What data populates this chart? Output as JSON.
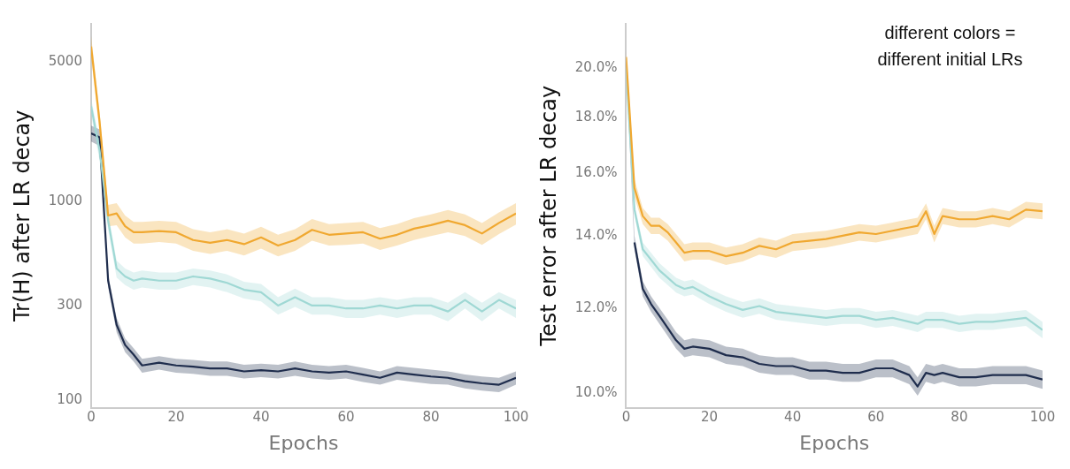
{
  "chart_data": [
    {
      "type": "line",
      "ylabel": "Tr(H) after LR decay",
      "xlabel": "Epochs",
      "log": "y",
      "grid": false,
      "legend": false,
      "marker": "none",
      "line_style": "solid",
      "xlim": [
        0,
        100
      ],
      "xticks": [
        0,
        20,
        40,
        60,
        80,
        100
      ],
      "ylim": [
        92,
        7800
      ],
      "yticks": [
        100,
        300,
        1000,
        5000
      ],
      "x": [
        0,
        2,
        4,
        6,
        8,
        10,
        12,
        16,
        20,
        24,
        28,
        32,
        36,
        40,
        44,
        48,
        52,
        56,
        60,
        64,
        68,
        72,
        76,
        80,
        84,
        88,
        92,
        96,
        100
      ],
      "series": [
        {
          "color": "#f0a830",
          "values": [
            6000,
            2500,
            850,
            870,
            750,
            700,
            700,
            710,
            700,
            640,
            620,
            640,
            610,
            660,
            600,
            640,
            720,
            680,
            690,
            700,
            650,
            680,
            730,
            760,
            800,
            760,
            690,
            780,
            870
          ],
          "lower": [
            5300,
            2200,
            750,
            760,
            660,
            615,
            615,
            625,
            615,
            565,
            545,
            565,
            535,
            580,
            530,
            565,
            635,
            600,
            605,
            615,
            570,
            600,
            640,
            670,
            700,
            670,
            605,
            685,
            765
          ],
          "upper": [
            6800,
            2800,
            960,
            980,
            850,
            790,
            790,
            800,
            790,
            725,
            700,
            725,
            690,
            745,
            680,
            725,
            815,
            770,
            780,
            790,
            735,
            770,
            825,
            860,
            905,
            860,
            780,
            880,
            980
          ]
        },
        {
          "color": "#9fd8d4",
          "values": [
            3000,
            1800,
            800,
            460,
            420,
            400,
            410,
            400,
            400,
            420,
            410,
            390,
            360,
            350,
            300,
            330,
            300,
            300,
            290,
            290,
            300,
            290,
            300,
            300,
            280,
            320,
            280,
            320,
            290
          ],
          "lower": [
            2700,
            1600,
            720,
            415,
            380,
            360,
            370,
            360,
            360,
            380,
            370,
            350,
            325,
            315,
            270,
            295,
            270,
            270,
            260,
            260,
            270,
            260,
            270,
            270,
            250,
            290,
            250,
            290,
            260
          ],
          "upper": [
            3300,
            2000,
            880,
            505,
            460,
            440,
            450,
            440,
            440,
            460,
            450,
            430,
            395,
            385,
            330,
            365,
            330,
            330,
            320,
            320,
            330,
            320,
            330,
            330,
            310,
            350,
            310,
            350,
            320
          ]
        },
        {
          "color": "#1f2d4d",
          "values": [
            2200,
            2100,
            400,
            240,
            190,
            170,
            150,
            155,
            150,
            148,
            145,
            145,
            140,
            142,
            140,
            145,
            140,
            138,
            140,
            135,
            130,
            138,
            135,
            132,
            130,
            125,
            122,
            120,
            130
          ],
          "lower": [
            2000,
            1900,
            370,
            220,
            175,
            157,
            138,
            143,
            138,
            136,
            133,
            133,
            129,
            131,
            129,
            133,
            129,
            127,
            129,
            124,
            120,
            127,
            124,
            121,
            120,
            115,
            112,
            110,
            120
          ],
          "upper": [
            2400,
            2300,
            430,
            260,
            205,
            183,
            162,
            167,
            162,
            160,
            157,
            157,
            151,
            153,
            151,
            157,
            151,
            149,
            151,
            146,
            140,
            149,
            146,
            143,
            140,
            135,
            132,
            130,
            140
          ]
        }
      ]
    },
    {
      "type": "line",
      "ylabel": "Test error after LR decay",
      "xlabel": "Epochs",
      "log": "y",
      "grid": false,
      "legend": false,
      "marker": "none",
      "line_style": "solid",
      "xlim": [
        0,
        100
      ],
      "xticks": [
        0,
        20,
        40,
        60,
        80,
        100
      ],
      "ylim": [
        9.7,
        22
      ],
      "yticks": [
        {
          "value": 10,
          "label": "10.0%"
        },
        {
          "value": 12,
          "label": "12.0%"
        },
        {
          "value": 14,
          "label": "14.0%"
        },
        {
          "value": 16,
          "label": "16.0%"
        },
        {
          "value": 18,
          "label": "18.0%"
        },
        {
          "value": 20,
          "label": "20.0%"
        }
      ],
      "annotations": [
        "different colors = different initial LRs"
      ],
      "x": [
        0,
        2,
        4,
        6,
        8,
        10,
        12,
        14,
        16,
        20,
        24,
        28,
        32,
        36,
        40,
        44,
        48,
        52,
        56,
        60,
        64,
        68,
        70,
        72,
        74,
        76,
        80,
        84,
        88,
        92,
        96,
        100
      ],
      "series": [
        {
          "color": "#f0a830",
          "values": [
            20.5,
            15.5,
            14.6,
            14.3,
            14.3,
            14.1,
            13.8,
            13.5,
            13.55,
            13.55,
            13.4,
            13.5,
            13.7,
            13.6,
            13.8,
            13.85,
            13.9,
            14.0,
            14.1,
            14.05,
            14.15,
            14.25,
            14.3,
            14.75,
            14.05,
            14.6,
            14.5,
            14.5,
            14.6,
            14.5,
            14.8,
            14.75
          ],
          "lower": [
            20.2,
            15.2,
            14.35,
            14.05,
            14.05,
            13.85,
            13.55,
            13.25,
            13.3,
            13.3,
            13.15,
            13.25,
            13.45,
            13.35,
            13.55,
            13.6,
            13.65,
            13.75,
            13.85,
            13.8,
            13.9,
            14.0,
            14.05,
            14.5,
            13.8,
            14.35,
            14.25,
            14.25,
            14.35,
            14.25,
            14.55,
            14.5
          ],
          "upper": [
            20.8,
            15.8,
            14.85,
            14.55,
            14.55,
            14.35,
            14.05,
            13.75,
            13.8,
            13.8,
            13.65,
            13.75,
            13.95,
            13.85,
            14.05,
            14.1,
            14.15,
            14.25,
            14.35,
            14.3,
            14.4,
            14.5,
            14.55,
            15.0,
            14.3,
            14.85,
            14.75,
            14.75,
            14.85,
            14.75,
            15.05,
            15.0
          ]
        },
        {
          "color": "#9fd8d4",
          "values": [
            20,
            14.8,
            13.6,
            13.3,
            13.0,
            12.8,
            12.6,
            12.5,
            12.55,
            12.3,
            12.1,
            11.95,
            12.05,
            11.9,
            11.85,
            11.8,
            11.75,
            11.8,
            11.8,
            11.7,
            11.75,
            11.65,
            11.6,
            11.7,
            11.7,
            11.7,
            11.6,
            11.65,
            11.65,
            11.7,
            11.75,
            11.45
          ],
          "lower": [
            19.8,
            14.6,
            13.4,
            13.1,
            12.8,
            12.6,
            12.4,
            12.3,
            12.35,
            12.1,
            11.9,
            11.75,
            11.85,
            11.7,
            11.65,
            11.6,
            11.55,
            11.6,
            11.6,
            11.5,
            11.55,
            11.45,
            11.4,
            11.5,
            11.5,
            11.5,
            11.4,
            11.45,
            11.45,
            11.5,
            11.55,
            11.25
          ],
          "upper": [
            20.2,
            15.0,
            13.8,
            13.5,
            13.2,
            13.0,
            12.8,
            12.7,
            12.75,
            12.5,
            12.3,
            12.15,
            12.25,
            12.1,
            12.05,
            12.0,
            11.95,
            12.0,
            12.0,
            11.9,
            11.95,
            11.85,
            11.8,
            11.9,
            11.9,
            11.9,
            11.8,
            11.85,
            11.85,
            11.9,
            11.95,
            11.65
          ]
        },
        {
          "color": "#1f2d4d",
          "values": [
            null,
            13.8,
            12.5,
            12.1,
            11.8,
            11.5,
            11.2,
            11.0,
            11.05,
            11.0,
            10.85,
            10.8,
            10.65,
            10.6,
            10.6,
            10.5,
            10.5,
            10.45,
            10.45,
            10.55,
            10.55,
            10.4,
            10.15,
            10.45,
            10.4,
            10.45,
            10.35,
            10.35,
            10.4,
            10.4,
            10.4,
            10.3
          ],
          "lower": [
            20.1,
            13.6,
            12.3,
            11.9,
            11.6,
            11.3,
            11.0,
            10.8,
            10.85,
            10.8,
            10.65,
            10.6,
            10.45,
            10.4,
            10.4,
            10.3,
            10.3,
            10.25,
            10.25,
            10.35,
            10.35,
            10.2,
            9.95,
            10.25,
            10.2,
            10.25,
            10.15,
            10.15,
            10.2,
            10.2,
            10.2,
            10.1
          ],
          "upper": [
            20.5,
            14.0,
            12.7,
            12.3,
            12.0,
            11.7,
            11.4,
            11.2,
            11.25,
            11.2,
            11.05,
            11.0,
            10.85,
            10.8,
            10.8,
            10.7,
            10.7,
            10.65,
            10.65,
            10.75,
            10.75,
            10.6,
            10.35,
            10.65,
            10.6,
            10.65,
            10.55,
            10.55,
            10.6,
            10.6,
            10.6,
            10.5
          ]
        }
      ]
    }
  ]
}
